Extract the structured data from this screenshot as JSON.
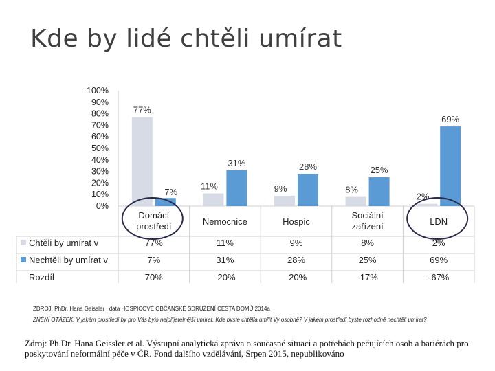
{
  "title": "Kde by lidé chtěli umírat",
  "chart_data": {
    "type": "bar",
    "categories": [
      "Domácí prostředí",
      "Nemocnice",
      "Hospic",
      "Sociální zařízení",
      "LDN"
    ],
    "category_lines": [
      [
        "Domácí",
        "prostředí"
      ],
      [
        "Nemocnice"
      ],
      [
        "Hospic"
      ],
      [
        "Sociální",
        "zařízení"
      ],
      [
        "LDN"
      ]
    ],
    "yticks": [
      "0%",
      "10%",
      "20%",
      "30%",
      "40%",
      "50%",
      "60%",
      "70%",
      "80%",
      "90%",
      "100%"
    ],
    "ylim": [
      0,
      100
    ],
    "series": [
      {
        "name": "Chtěli by umírat v",
        "values": [
          77,
          11,
          9,
          8,
          2
        ],
        "labels": [
          "77%",
          "11%",
          "9%",
          "8%",
          "2%"
        ],
        "color": "#d6dbe5"
      },
      {
        "name": "Nechtěli by umírat v",
        "values": [
          7,
          31,
          28,
          25,
          69
        ],
        "labels": [
          "7%",
          "31%",
          "28%",
          "25%",
          "69%"
        ],
        "color": "#5b9bd5"
      }
    ],
    "table": {
      "diff_label": "Rozdíl",
      "diff_values": [
        "70%",
        "-20%",
        "-20%",
        "-17%",
        "-67%"
      ]
    },
    "highlighted_categories": [
      "Domácí prostředí",
      "LDN"
    ],
    "highlight_color": "#2a2a4a"
  },
  "notes": {
    "line1": "ZDROJ: PhDr. Hana Geissler , data HOSPICOVÉ OBČANSKÉ SDRUŽENÍ CESTA DOMŮ 2014a",
    "line2": "ZNĚNÍ OTÁZEK: V jakém prostředí by pro Vás bylo nejpřijatelnější umírat. Kde byste chtěl/a umřít Vy osobně? V jakém prostředí byste rozhodně nechtěli umírat?"
  },
  "source": "Zdroj: Ph.Dr. Hana Geissler et al. Výstupní analytická zpráva o současné situaci a potřebách pečujících osob a bariérách pro poskytování neformální péče v ČR. Fond dalšího vzdělávání, Srpen 2015, nepublikováno"
}
